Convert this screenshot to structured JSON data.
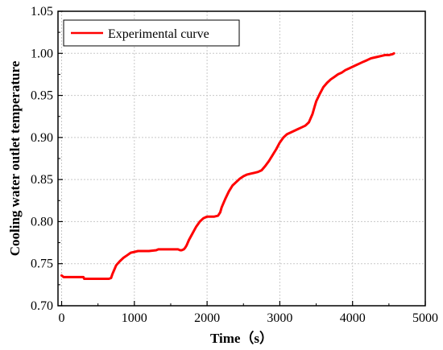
{
  "chart_data": {
    "type": "line",
    "title": "",
    "xlabel": "Time（s）",
    "ylabel": "Cooling water outlet temperature",
    "xlim": [
      -50,
      5000
    ],
    "ylim": [
      0.7,
      1.05
    ],
    "xticks": [
      "0",
      "1000",
      "2000",
      "3000",
      "4000",
      "5000"
    ],
    "yticks": [
      "0.70",
      "0.75",
      "0.80",
      "0.85",
      "0.90",
      "0.95",
      "1.00",
      "1.05"
    ],
    "grid": true,
    "legend_position": "top-left",
    "series": [
      {
        "name": "Experimental curve",
        "color": "#ff0000",
        "x": [
          0,
          30,
          300,
          310,
          650,
          680,
          700,
          720,
          750,
          780,
          800,
          850,
          900,
          950,
          1000,
          1050,
          1100,
          1200,
          1300,
          1330,
          1400,
          1500,
          1550,
          1600,
          1630,
          1650,
          1680,
          1700,
          1720,
          1750,
          1800,
          1850,
          1900,
          1950,
          2000,
          2050,
          2100,
          2150,
          2180,
          2200,
          2250,
          2300,
          2350,
          2400,
          2450,
          2500,
          2550,
          2600,
          2650,
          2700,
          2750,
          2800,
          2850,
          2900,
          2950,
          3000,
          3050,
          3100,
          3150,
          3200,
          3250,
          3300,
          3350,
          3400,
          3450,
          3480,
          3500,
          3550,
          3600,
          3650,
          3700,
          3750,
          3800,
          3850,
          3900,
          3950,
          4000,
          4050,
          4100,
          4150,
          4200,
          4250,
          4300,
          4350,
          4400,
          4450,
          4500,
          4550,
          4570
        ],
        "y": [
          0.736,
          0.734,
          0.734,
          0.732,
          0.732,
          0.733,
          0.738,
          0.742,
          0.748,
          0.751,
          0.753,
          0.757,
          0.76,
          0.763,
          0.764,
          0.765,
          0.765,
          0.765,
          0.766,
          0.767,
          0.767,
          0.767,
          0.767,
          0.767,
          0.766,
          0.766,
          0.767,
          0.769,
          0.772,
          0.778,
          0.786,
          0.794,
          0.8,
          0.804,
          0.806,
          0.806,
          0.806,
          0.807,
          0.811,
          0.817,
          0.827,
          0.836,
          0.843,
          0.847,
          0.851,
          0.854,
          0.856,
          0.857,
          0.858,
          0.859,
          0.861,
          0.866,
          0.872,
          0.879,
          0.886,
          0.894,
          0.9,
          0.904,
          0.906,
          0.908,
          0.91,
          0.912,
          0.914,
          0.918,
          0.928,
          0.937,
          0.943,
          0.952,
          0.96,
          0.965,
          0.969,
          0.972,
          0.975,
          0.977,
          0.98,
          0.982,
          0.984,
          0.986,
          0.988,
          0.99,
          0.992,
          0.994,
          0.995,
          0.996,
          0.997,
          0.998,
          0.998,
          0.999,
          1.0
        ]
      }
    ]
  }
}
